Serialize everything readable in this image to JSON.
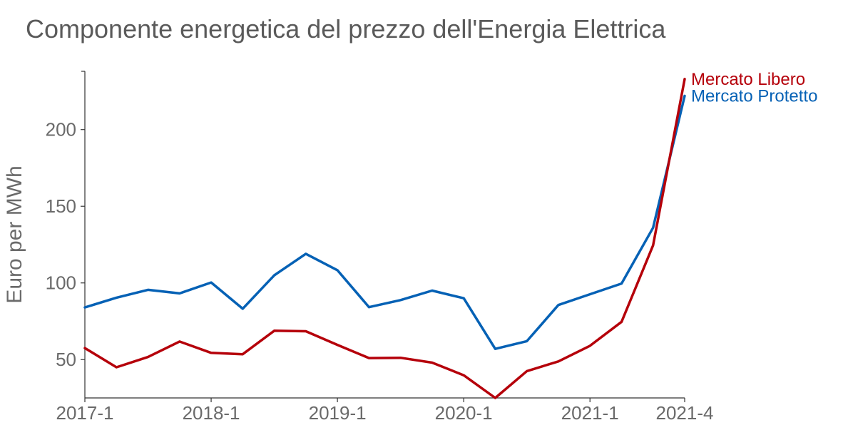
{
  "chart_data": {
    "type": "line",
    "title": "Componente energetica del prezzo dell'Energia Elettrica",
    "xlabel": "",
    "ylabel": "Euro per MWh",
    "x": [
      "2017-1",
      "2017-2",
      "2017-3",
      "2017-4",
      "2018-1",
      "2018-2",
      "2018-3",
      "2018-4",
      "2019-1",
      "2019-2",
      "2019-3",
      "2019-4",
      "2020-1",
      "2020-2",
      "2020-3",
      "2020-4",
      "2021-1",
      "2021-2",
      "2021-3",
      "2021-4"
    ],
    "x_tick_labels": [
      "2017-1",
      "2018-1",
      "2019-1",
      "2020-1",
      "2021-1",
      "2021-4"
    ],
    "ylim": [
      25,
      238
    ],
    "y_ticks": [
      50,
      100,
      150,
      200
    ],
    "grid": false,
    "legend": "inline labels at line ends",
    "series": [
      {
        "name": "Mercato Libero",
        "color": "#b5000a",
        "values": [
          57.5,
          45,
          51.7,
          61.8,
          54.4,
          53.5,
          68.8,
          68.5,
          59.6,
          51,
          51.2,
          48,
          39.8,
          25,
          42.5,
          48.8,
          59,
          74.6,
          124.5,
          233
        ]
      },
      {
        "name": "Mercato Protetto",
        "color": "#0561b5",
        "values": [
          84,
          90.4,
          95.5,
          93.2,
          100.3,
          83.2,
          105,
          119,
          108.3,
          84.2,
          88.8,
          95,
          90,
          57,
          62,
          85.6,
          92.6,
          99.6,
          136,
          222
        ]
      }
    ]
  }
}
